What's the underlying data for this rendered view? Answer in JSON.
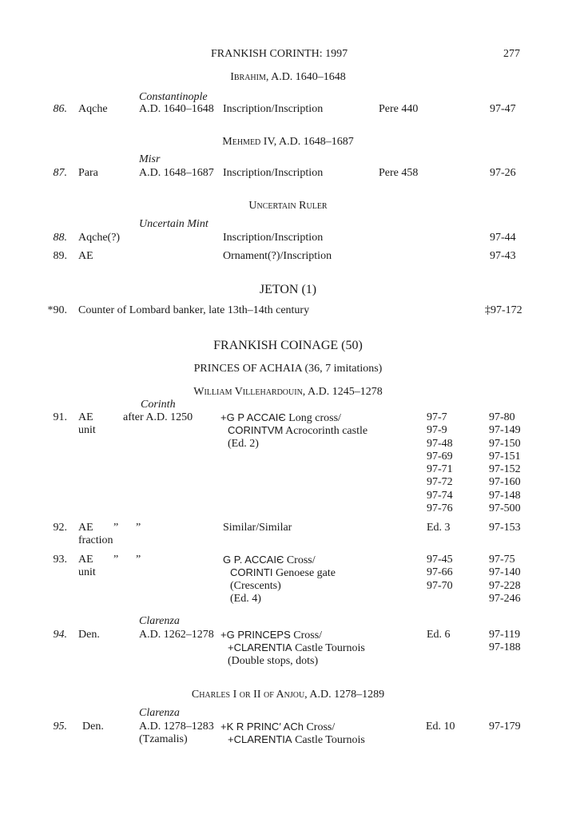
{
  "header": {
    "title": "FRANKISH CORINTH: 1997",
    "page_number": "277"
  },
  "ibrahim": {
    "heading": "Ibrahim, A.D. 1640–1648",
    "row86": {
      "num": "86.",
      "denom": "Aqche",
      "mint": "Constantinople",
      "date": "A.D. 1640–1648",
      "type": "Inscription/Inscription",
      "ref": "Pere 440",
      "inv": "97-47"
    }
  },
  "mehmed": {
    "heading": "Mehmed IV, A.D. 1648–1687",
    "row87": {
      "num": "87.",
      "denom": "Para",
      "mint": "Misr",
      "date": "A.D. 1648–1687",
      "type": "Inscription/Inscription",
      "ref": "Pere 458",
      "inv": "97-26"
    }
  },
  "uncertain": {
    "heading": "Uncertain Ruler",
    "mint": "Uncertain Mint",
    "row88": {
      "num": "88.",
      "denom": "Aqche(?)",
      "type": "Inscription/Inscription",
      "inv": "97-44"
    },
    "row89": {
      "num": "89.",
      "denom": "AE",
      "type": "Ornament(?)/Inscription",
      "inv": "97-43"
    }
  },
  "jeton": {
    "heading": "JETON (1)",
    "row90": {
      "num": "*90.",
      "desc": "Counter of Lombard banker, late 13th–14th century",
      "inv": "‡97-172"
    }
  },
  "frankish": {
    "heading": "FRANKISH COINAGE (50)",
    "subheading": "PRINCES OF ACHAIA (36, 7 imitations)",
    "william": {
      "heading": "William Villehardouin, A.D. 1245–1278",
      "row91": {
        "num": "91.",
        "denom": "AE",
        "denom2": "unit",
        "mint": "Corinth",
        "date": "after A.D. 1250",
        "obv_legend": "+G P ACCAIЄ",
        "obv_type": "Long cross/",
        "rev_legend": "CORINTVM",
        "rev_type": "Acrocorinth castle",
        "note": "(Ed. 2)",
        "inv_a": [
          "97-7",
          "97-9",
          "97-48",
          "97-69",
          "97-71",
          "97-72",
          "97-74",
          "97-76"
        ],
        "inv_b": [
          "97-80",
          "97-149",
          "97-150",
          "97-151",
          "97-152",
          "97-160",
          "97-148",
          "97-500"
        ]
      },
      "row92": {
        "num": "92.",
        "denom": "AE",
        "denom2": "fraction",
        "ditto1": "”",
        "ditto2": "”",
        "type": "Similar/Similar",
        "ref": "Ed. 3",
        "inv": "97-153"
      },
      "row93": {
        "num": "93.",
        "denom": "AE",
        "denom2": "unit",
        "ditto1": "”",
        "ditto2": "”",
        "obv_legend": "G P. ACCAIЄ",
        "obv_type": "Cross/",
        "rev_legend": "CORINTI",
        "rev_type": "Genoese gate",
        "note1": "(Crescents)",
        "note2": "(Ed. 4)",
        "inv_a": [
          "97-45",
          "97-66",
          "97-70"
        ],
        "inv_b": [
          "97-75",
          "97-140",
          "97-228",
          "97-246"
        ]
      },
      "row94": {
        "num": "94.",
        "denom": "Den.",
        "mint": "Clarenza",
        "date": "A.D. 1262–1278",
        "obv_legend": "+G PRINCEPS",
        "obv_type": "Cross/",
        "rev_legend": "+CLARENTIA",
        "rev_type": "Castle Tournois",
        "note": "(Double stops, dots)",
        "ref": "Ed. 6",
        "inv": [
          "97-119",
          "97-188"
        ]
      }
    },
    "charles": {
      "heading": "Charles I or II of Anjou, A.D. 1278–1289",
      "row95": {
        "num": "95.",
        "denom": "Den.",
        "mint": "Clarenza",
        "date": "A.D. 1278–1283",
        "date2": "(Tzamalis)",
        "obv_legend": "+K R PRINC′ ACh",
        "obv_type": "Cross/",
        "rev_legend": "+CLARENTIA",
        "rev_type": "Castle Tournois",
        "ref": "Ed. 10",
        "inv": "97-179"
      }
    }
  }
}
